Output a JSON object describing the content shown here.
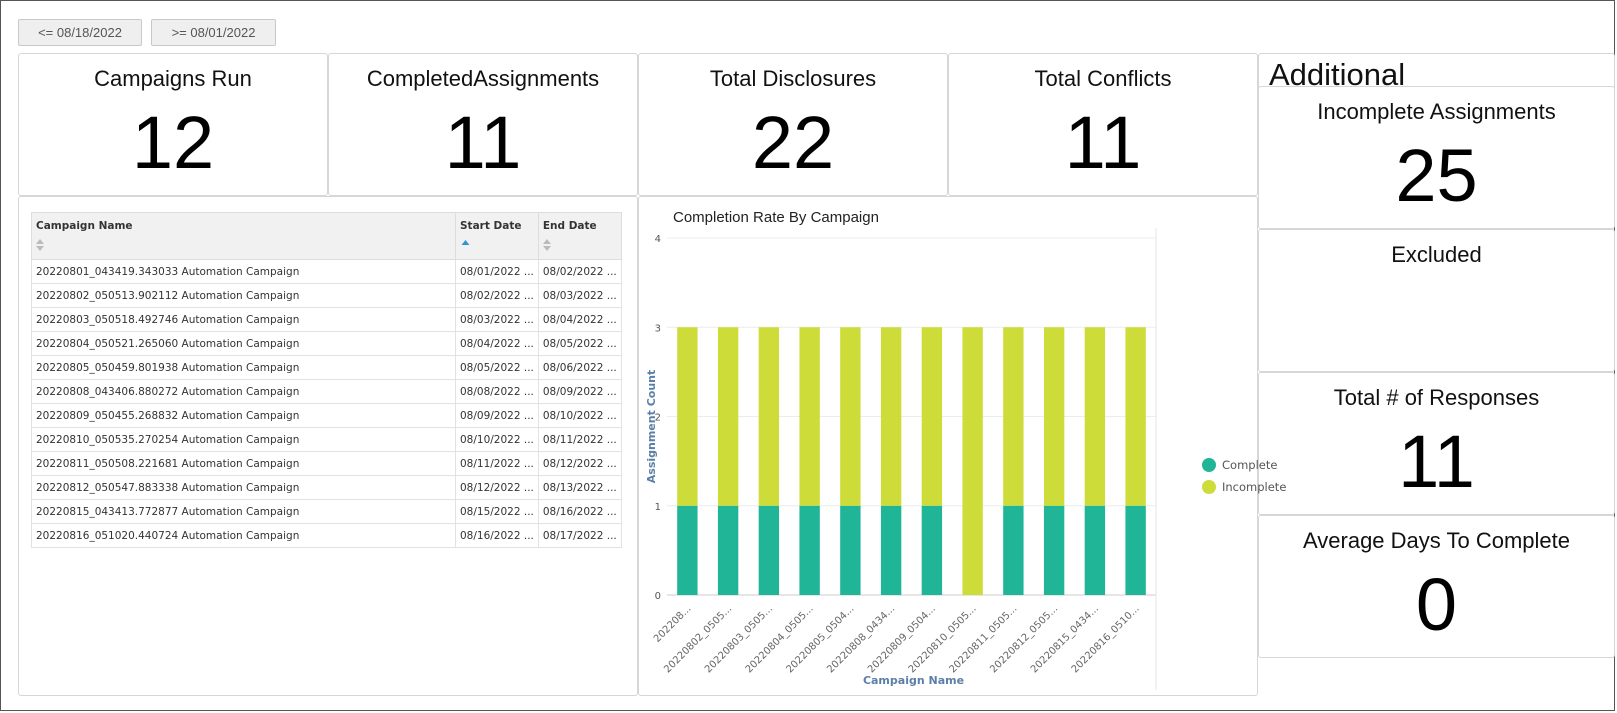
{
  "filters": [
    {
      "label": "<= 08/18/2022"
    },
    {
      "label": ">= 08/01/2022"
    }
  ],
  "kpis": [
    {
      "title": "Campaigns Run",
      "value": "12"
    },
    {
      "title": "CompletedAssignments",
      "value": "11"
    },
    {
      "title": "Total Disclosures",
      "value": "22"
    },
    {
      "title": "Total Conflicts",
      "value": "11"
    }
  ],
  "side_panel": {
    "heading": "Additional",
    "tiles": [
      {
        "title": "Incomplete Assignments",
        "value": "25"
      },
      {
        "title": "Excluded",
        "value": ""
      },
      {
        "title": "Total # of Responses",
        "value": "11"
      },
      {
        "title": "Average Days To Complete",
        "value": "0"
      }
    ]
  },
  "table": {
    "columns": [
      "Campaign Name",
      "Start Date",
      "End Date"
    ],
    "sorted_column": "Start Date",
    "rows": [
      [
        "20220801_043419.343033 Automation Campaign",
        "08/01/2022 ...",
        "08/02/2022 ..."
      ],
      [
        "20220802_050513.902112 Automation Campaign",
        "08/02/2022 ...",
        "08/03/2022 ..."
      ],
      [
        "20220803_050518.492746 Automation Campaign",
        "08/03/2022 ...",
        "08/04/2022 ..."
      ],
      [
        "20220804_050521.265060 Automation Campaign",
        "08/04/2022 ...",
        "08/05/2022 ..."
      ],
      [
        "20220805_050459.801938 Automation Campaign",
        "08/05/2022 ...",
        "08/06/2022 ..."
      ],
      [
        "20220808_043406.880272 Automation Campaign",
        "08/08/2022 ...",
        "08/09/2022 ..."
      ],
      [
        "20220809_050455.268832 Automation Campaign",
        "08/09/2022 ...",
        "08/10/2022 ..."
      ],
      [
        "20220810_050535.270254 Automation Campaign",
        "08/10/2022 ...",
        "08/11/2022 ..."
      ],
      [
        "20220811_050508.221681 Automation Campaign",
        "08/11/2022 ...",
        "08/12/2022 ..."
      ],
      [
        "20220812_050547.883338 Automation Campaign",
        "08/12/2022 ...",
        "08/13/2022 ..."
      ],
      [
        "20220815_043413.772877 Automation Campaign",
        "08/15/2022 ...",
        "08/16/2022 ..."
      ],
      [
        "20220816_051020.440724 Automation Campaign",
        "08/16/2022 ...",
        "08/17/2022 ..."
      ]
    ]
  },
  "chart_data": {
    "type": "bar",
    "stacked": true,
    "title": "Completion Rate By Campaign",
    "xlabel": "Campaign Name",
    "ylabel": "Assignment Count",
    "ylim": [
      0,
      4
    ],
    "yticks": [
      "0",
      "1",
      "2",
      "3",
      "4"
    ],
    "grid": true,
    "legend_position": "right",
    "categories": [
      "202208...",
      "20220802_0505...",
      "20220803_0505...",
      "20220804_0505...",
      "20220805_0504...",
      "20220808_0434...",
      "20220809_0504...",
      "20220810_0505...",
      "20220811_0505...",
      "20220812_0505...",
      "20220815_0434...",
      "20220816_0510..."
    ],
    "series": [
      {
        "name": "Complete",
        "color": "#1fb596",
        "values": [
          1,
          1,
          1,
          1,
          1,
          1,
          1,
          0,
          1,
          1,
          1,
          1
        ]
      },
      {
        "name": "Incomplete",
        "color": "#cddc39",
        "values": [
          2,
          2,
          2,
          2,
          2,
          2,
          2,
          3,
          2,
          2,
          2,
          2
        ]
      }
    ]
  },
  "icons": {
    "sort_both": "sort-both-icon",
    "sort_asc": "sort-ascending-icon",
    "legend_dot": "legend-dot-icon"
  }
}
